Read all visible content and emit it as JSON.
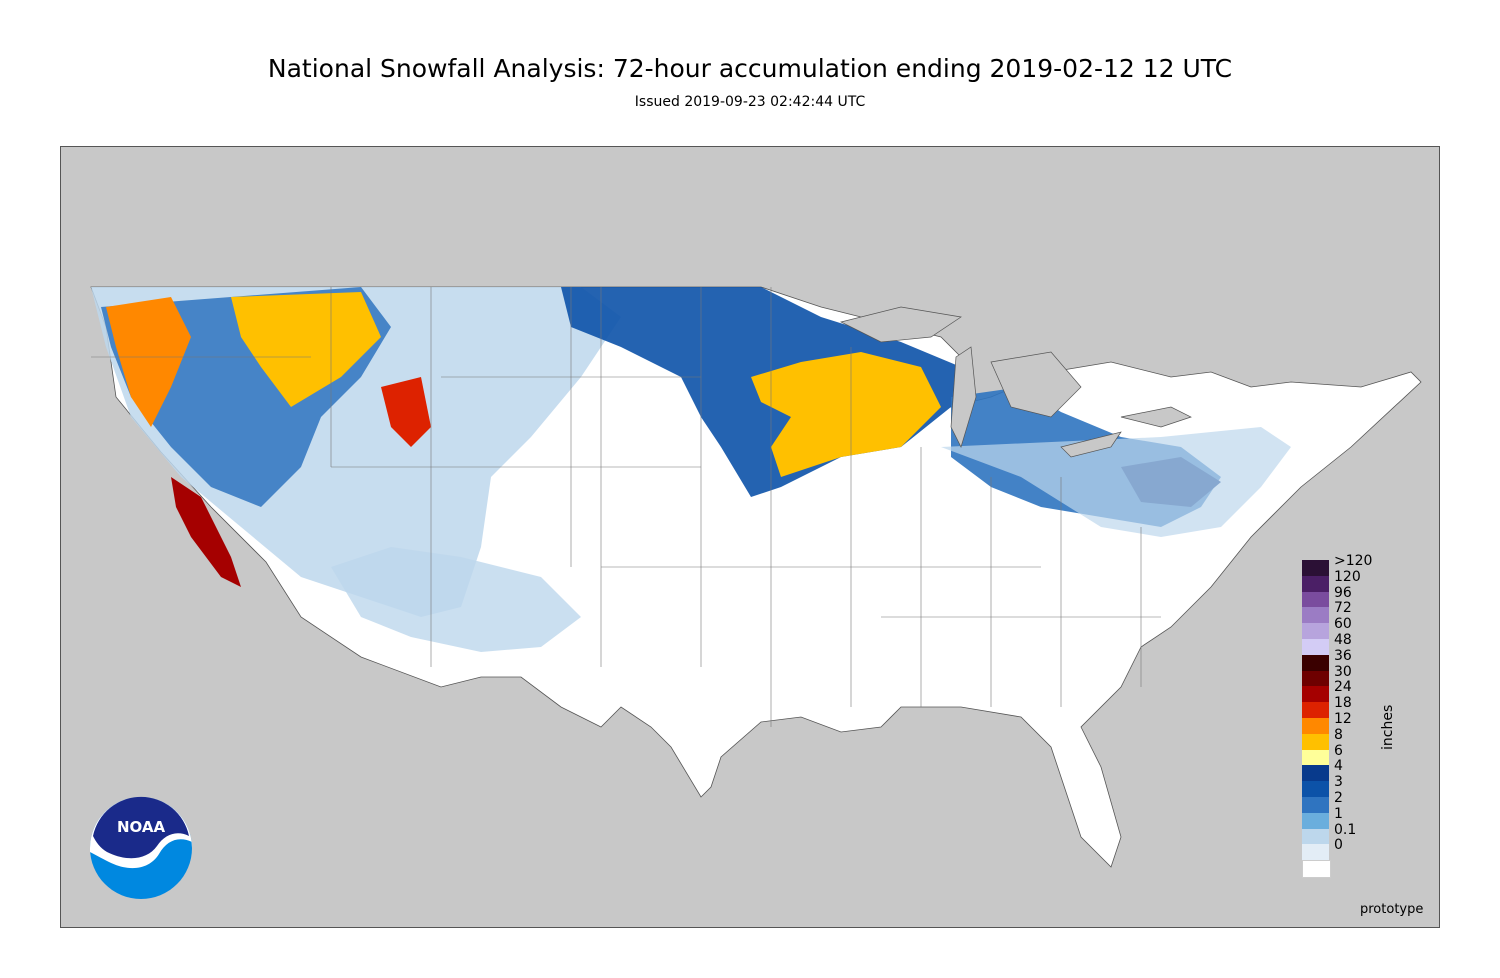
{
  "header": {
    "title": "National Snowfall Analysis: 72-hour accumulation ending 2019-02-12 12 UTC",
    "subtitle": "Issued 2019-09-23 02:42:44 UTC"
  },
  "legend": {
    "unit": "inches",
    "entries": [
      {
        "label": ">120",
        "color": "#2b1035"
      },
      {
        "label": "120",
        "color": "#4b1f66"
      },
      {
        "label": "96",
        "color": "#7a4c9e"
      },
      {
        "label": "72",
        "color": "#9b7cc4"
      },
      {
        "label": "60",
        "color": "#b7a4dd"
      },
      {
        "label": "48",
        "color": "#d3ccf5"
      },
      {
        "label": "36",
        "color": "#3a0000"
      },
      {
        "label": "30",
        "color": "#6e0000"
      },
      {
        "label": "24",
        "color": "#a50000"
      },
      {
        "label": "18",
        "color": "#dd2200"
      },
      {
        "label": "12",
        "color": "#ff8800"
      },
      {
        "label": "8",
        "color": "#ffc000"
      },
      {
        "label": "6",
        "color": "#ffff99"
      },
      {
        "label": "4",
        "color": "#083a8c"
      },
      {
        "label": "3",
        "color": "#0c52a8"
      },
      {
        "label": "2",
        "color": "#2f74c0"
      },
      {
        "label": "1",
        "color": "#6aaedd"
      },
      {
        "label": "0.1",
        "color": "#bdd7ec"
      },
      {
        "label": "0",
        "color": "#e3edf6"
      },
      {
        "label": "",
        "color": "#ffffff"
      }
    ]
  },
  "footer": {
    "watermark": "prototype"
  },
  "logo": {
    "text": "NOAA",
    "icon": "noaa-logo-icon"
  },
  "colors": {
    "ocean": "#c8c8c8",
    "land_conus": "#ffffff",
    "land_other": "#c8c8c8"
  }
}
